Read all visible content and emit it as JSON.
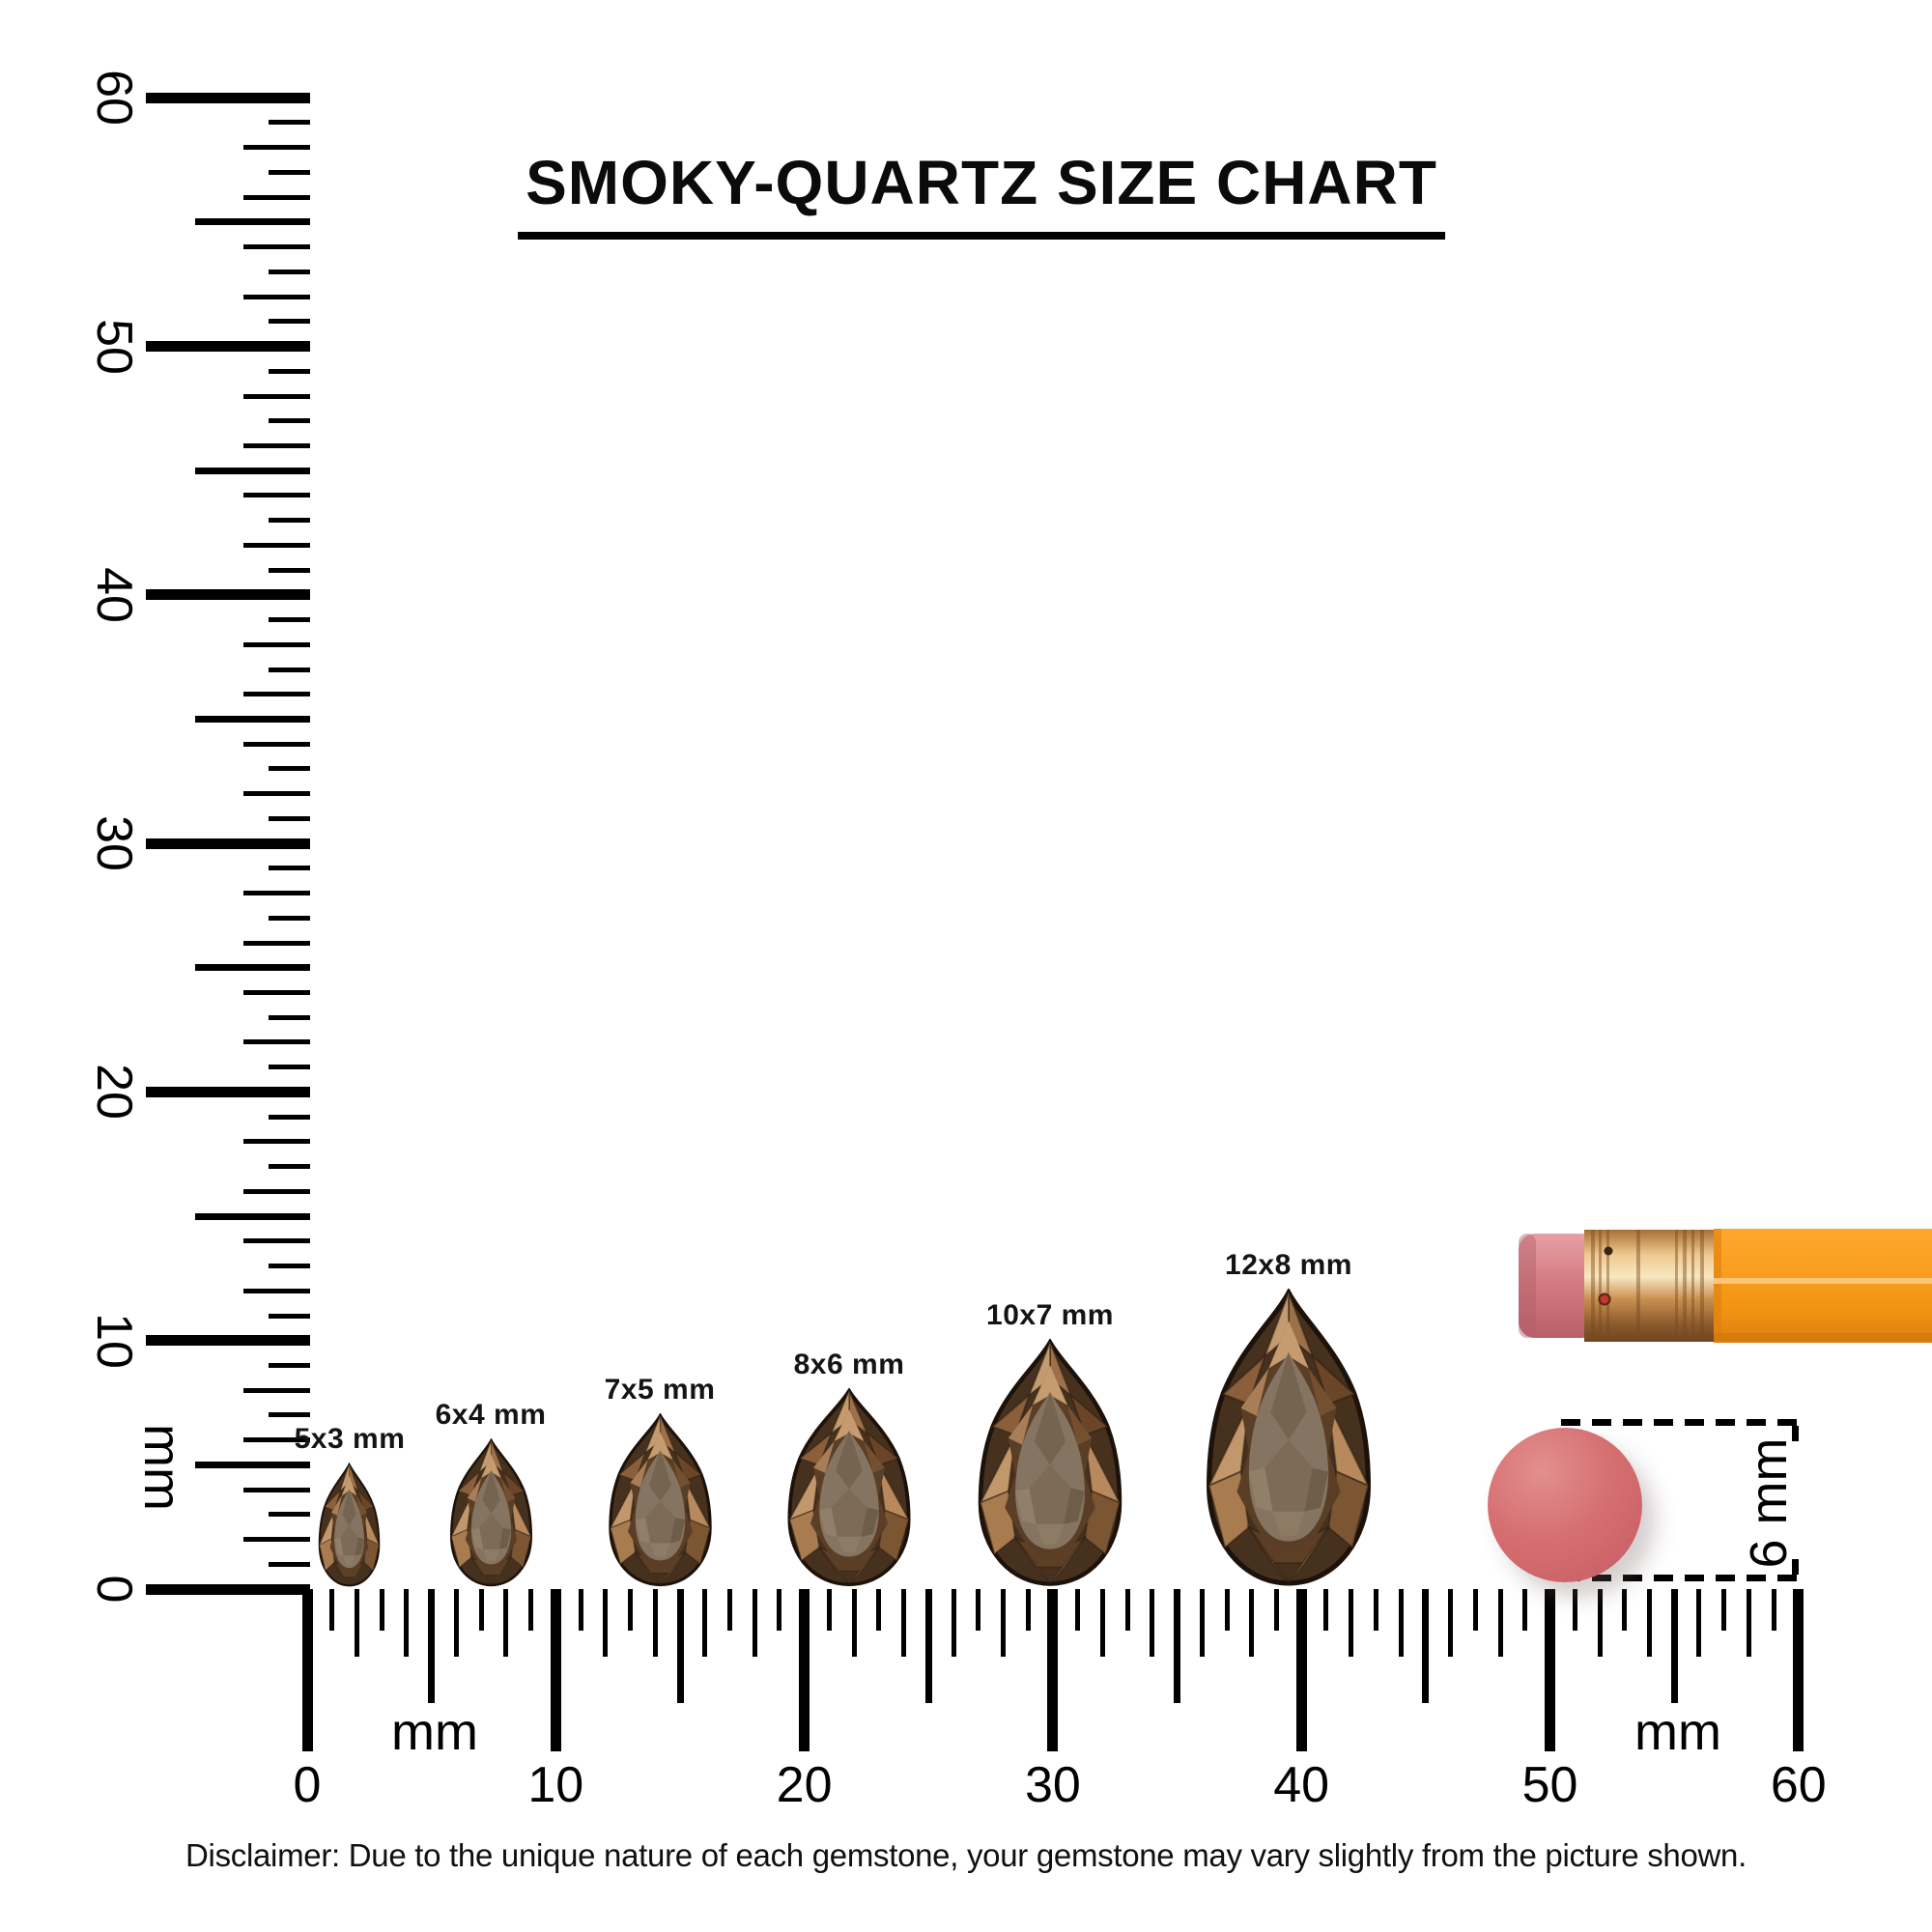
{
  "title": "SMOKY-QUARTZ SIZE CHART",
  "rulers": {
    "vertical": {
      "unit": "mm",
      "labels": [
        "0",
        "10",
        "20",
        "30",
        "40",
        "50",
        "60"
      ]
    },
    "horizontal": {
      "unit_labels": [
        "mm",
        "mm"
      ],
      "labels": [
        "0",
        "10",
        "20",
        "30",
        "40",
        "50",
        "60"
      ]
    }
  },
  "gems": [
    {
      "label": "5x3 mm",
      "width_mm": 3,
      "height_mm": 5,
      "center_mm": 1.7
    },
    {
      "label": "6x4 mm",
      "width_mm": 4,
      "height_mm": 6,
      "center_mm": 7.4
    },
    {
      "label": "7x5 mm",
      "width_mm": 5,
      "height_mm": 7,
      "center_mm": 14.2
    },
    {
      "label": "8x6 mm",
      "width_mm": 6,
      "height_mm": 8,
      "center_mm": 21.8
    },
    {
      "label": "10x7 mm",
      "width_mm": 7,
      "height_mm": 10,
      "center_mm": 29.9
    },
    {
      "label": "12x8 mm",
      "width_mm": 8,
      "height_mm": 12,
      "center_mm": 39.5
    }
  ],
  "eraser_comparison": {
    "label": "6 mm"
  },
  "disclaimer": "Disclaimer: Due to the unique nature of each gemstone, your gemstone may vary slightly from the picture shown.",
  "colors": {
    "ink": "#000000",
    "pencil_orange": "#F89C1C",
    "eraser_pink": "#D4696E",
    "ferrule_gold": "#C98F52",
    "gem_dark_brown": "#46301E",
    "gem_light_facet": "#C59A6E",
    "gem_table": "#857462"
  }
}
